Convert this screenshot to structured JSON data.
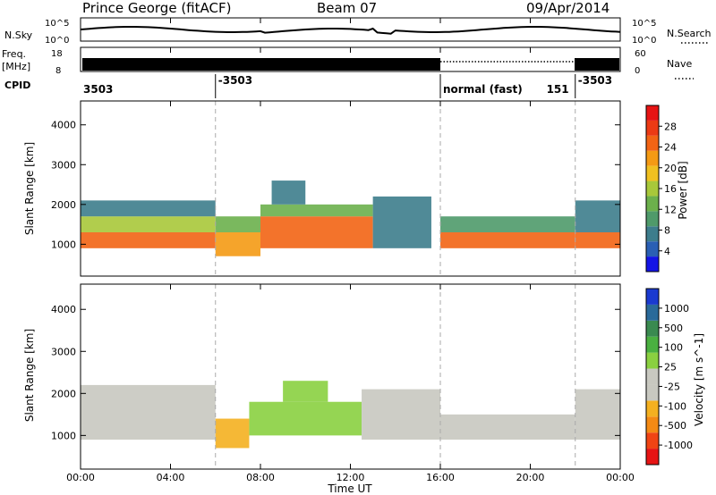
{
  "header": {
    "station": "Prince George (fitACF)",
    "beam": "Beam 07",
    "date": "09/Apr/2014"
  },
  "noise_panel": {
    "left_label": "N.Sky",
    "right_label": "N.Search",
    "left_ticks": [
      "10^5",
      "10^0"
    ],
    "right_ticks": [
      "10^5",
      "10^0"
    ]
  },
  "freq_panel": {
    "left_label_1": "Freq.",
    "left_label_2": "[MHz]",
    "right_label": "Nave",
    "left_ticks": [
      "18",
      "8"
    ],
    "right_ticks": [
      "60",
      "0"
    ]
  },
  "cpid_panel": {
    "label": "CPID",
    "segments": [
      {
        "text": "3503",
        "start_hour": 0
      },
      {
        "text": "-3503",
        "start_hour": 6
      },
      {
        "text": "normal (fast)",
        "start_hour": 16
      },
      {
        "text": "151",
        "start_hour": 20.6
      },
      {
        "text": "-3503",
        "start_hour": 22
      }
    ]
  },
  "x_axis": {
    "title": "Time UT",
    "ticks": [
      "00:00",
      "04:00",
      "08:00",
      "12:00",
      "16:00",
      "20:00",
      "00:00"
    ],
    "range_hours": [
      0,
      24
    ]
  },
  "colors": {
    "power": [
      "#1414e6",
      "#2a5fb4",
      "#3d7d8c",
      "#4f9a6a",
      "#6cb04c",
      "#a8c83a",
      "#f0c020",
      "#f49a14",
      "#f26414",
      "#ec3a14",
      "#e61414"
    ],
    "velocity": [
      "#e61414",
      "#f04414",
      "#f48a14",
      "#f4b020",
      "#c8c8c0",
      "#c8c8c0",
      "#8ad040",
      "#4ab040",
      "#3a8a50",
      "#2a6a9a",
      "#1a3ad0"
    ]
  },
  "chart_data": [
    {
      "type": "heatmap",
      "name": "power",
      "ylabel": "Slant Range [km]",
      "ylim": [
        200,
        4600
      ],
      "yticks": [
        "1000",
        "2000",
        "3000",
        "4000"
      ],
      "colorbar_label": "Power [dB]",
      "colorbar_ticks": [
        "4",
        "8",
        "12",
        "16",
        "20",
        "24",
        "28"
      ],
      "colorbar_range": [
        0,
        32
      ],
      "regions": [
        {
          "t0": 0.0,
          "t1": 6.0,
          "r0": 900,
          "r1": 1300,
          "value": 26
        },
        {
          "t0": 0.0,
          "t1": 6.0,
          "r0": 1300,
          "r1": 1700,
          "value": 16
        },
        {
          "t0": 0.0,
          "t1": 6.0,
          "r0": 1700,
          "r1": 2100,
          "value": 8
        },
        {
          "t0": 6.0,
          "t1": 8.0,
          "r0": 700,
          "r1": 1300,
          "value": 22
        },
        {
          "t0": 6.0,
          "t1": 8.0,
          "r0": 1300,
          "r1": 1700,
          "value": 12
        },
        {
          "t0": 8.0,
          "t1": 13.0,
          "r0": 900,
          "r1": 1700,
          "value": 24
        },
        {
          "t0": 8.0,
          "t1": 13.0,
          "r0": 1700,
          "r1": 2000,
          "value": 12
        },
        {
          "t0": 8.5,
          "t1": 10.0,
          "r0": 2000,
          "r1": 2600,
          "value": 8
        },
        {
          "t0": 13.0,
          "t1": 15.6,
          "r0": 900,
          "r1": 2200,
          "value": 6
        },
        {
          "t0": 16.0,
          "t1": 22.0,
          "r0": 900,
          "r1": 1300,
          "value": 26
        },
        {
          "t0": 16.0,
          "t1": 22.0,
          "r0": 1300,
          "r1": 1700,
          "value": 10
        },
        {
          "t0": 22.0,
          "t1": 24.0,
          "r0": 900,
          "r1": 1300,
          "value": 24
        },
        {
          "t0": 22.0,
          "t1": 24.0,
          "r0": 1300,
          "r1": 2100,
          "value": 8
        }
      ]
    },
    {
      "type": "heatmap",
      "name": "velocity",
      "ylabel": "Slant Range [km]",
      "ylim": [
        200,
        4600
      ],
      "yticks": [
        "1000",
        "2000",
        "3000",
        "4000"
      ],
      "colorbar_label": "Velocity [m s^-1]",
      "colorbar_ticks": [
        "-1000",
        "-500",
        "-100",
        "-25",
        "25",
        "100",
        "500",
        "1000"
      ],
      "colorbar_range": [
        -1250,
        1250
      ],
      "regions": [
        {
          "t0": 0.0,
          "t1": 6.0,
          "r0": 900,
          "r1": 2200,
          "value": 0
        },
        {
          "t0": 6.0,
          "t1": 7.5,
          "r0": 700,
          "r1": 1400,
          "value": -400
        },
        {
          "t0": 7.5,
          "t1": 12.5,
          "r0": 1000,
          "r1": 1800,
          "value": 300
        },
        {
          "t0": 9.0,
          "t1": 11.0,
          "r0": 1800,
          "r1": 2300,
          "value": 150
        },
        {
          "t0": 12.5,
          "t1": 16.0,
          "r0": 900,
          "r1": 2100,
          "value": 0
        },
        {
          "t0": 16.0,
          "t1": 22.0,
          "r0": 900,
          "r1": 1500,
          "value": 0
        },
        {
          "t0": 22.0,
          "t1": 24.0,
          "r0": 900,
          "r1": 2100,
          "value": 0
        }
      ]
    }
  ]
}
